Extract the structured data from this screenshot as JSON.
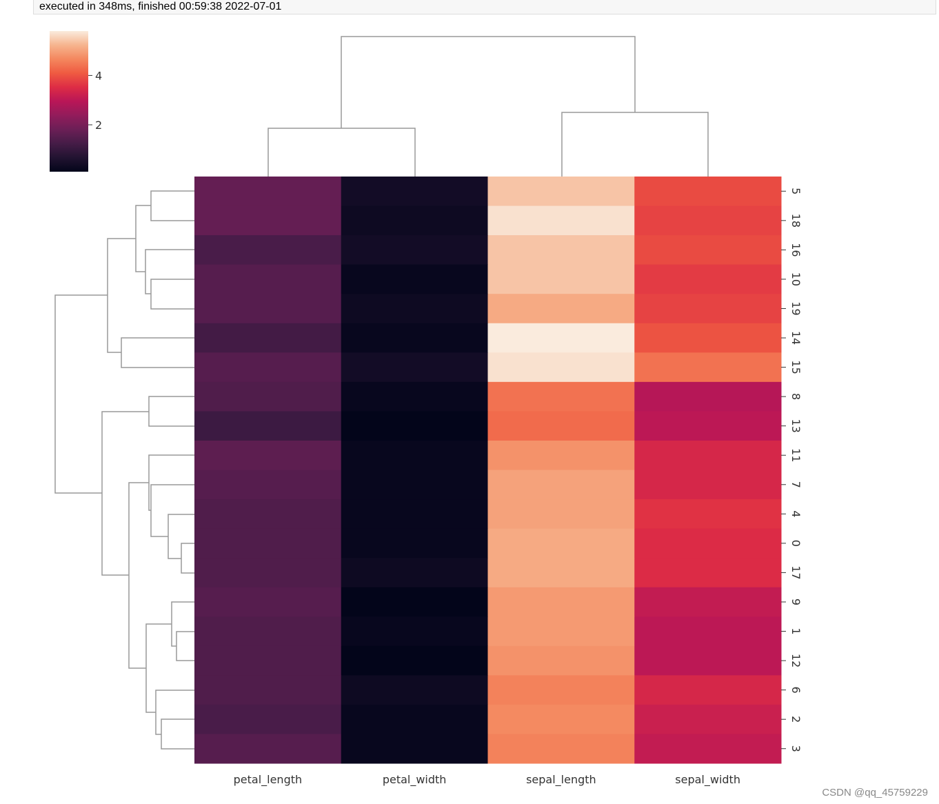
{
  "header": {
    "status": "executed in 348ms, finished 00:59:38 2022-07-01"
  },
  "watermark": "CSDN @qq_45759229",
  "chart_data": {
    "type": "heatmap",
    "columns": [
      "petal_length",
      "petal_width",
      "sepal_length",
      "sepal_width"
    ],
    "rows": [
      "5",
      "18",
      "16",
      "10",
      "19",
      "14",
      "15",
      "8",
      "13",
      "11",
      "7",
      "4",
      "0",
      "17",
      "9",
      "1",
      "12",
      "6",
      "2",
      "3"
    ],
    "values": [
      [
        1.7,
        0.4,
        5.4,
        3.9
      ],
      [
        1.7,
        0.3,
        5.7,
        3.8
      ],
      [
        1.3,
        0.4,
        5.4,
        3.9
      ],
      [
        1.5,
        0.2,
        5.4,
        3.7
      ],
      [
        1.5,
        0.3,
        5.1,
        3.8
      ],
      [
        1.2,
        0.2,
        5.8,
        4.0
      ],
      [
        1.5,
        0.4,
        5.7,
        4.4
      ],
      [
        1.4,
        0.2,
        4.4,
        2.9
      ],
      [
        1.1,
        0.1,
        4.3,
        3.0
      ],
      [
        1.6,
        0.2,
        4.8,
        3.4
      ],
      [
        1.5,
        0.2,
        5.0,
        3.4
      ],
      [
        1.4,
        0.2,
        5.0,
        3.6
      ],
      [
        1.4,
        0.2,
        5.1,
        3.5
      ],
      [
        1.4,
        0.3,
        5.1,
        3.5
      ],
      [
        1.5,
        0.1,
        4.9,
        3.1
      ],
      [
        1.4,
        0.2,
        4.9,
        3.0
      ],
      [
        1.4,
        0.1,
        4.8,
        3.0
      ],
      [
        1.4,
        0.3,
        4.6,
        3.4
      ],
      [
        1.3,
        0.2,
        4.7,
        3.2
      ],
      [
        1.5,
        0.2,
        4.6,
        3.1
      ]
    ],
    "colormap": [
      "#03051a",
      "#221331",
      "#451c47",
      "#6b1f56",
      "#921c5b",
      "#b91657",
      "#dd2c45",
      "#ef5a41",
      "#f4875e",
      "#f6b48e",
      "#faebdd"
    ],
    "colorbar_lim": [
      0.1,
      5.8
    ],
    "colorbar_ticks": [
      2,
      4
    ]
  }
}
